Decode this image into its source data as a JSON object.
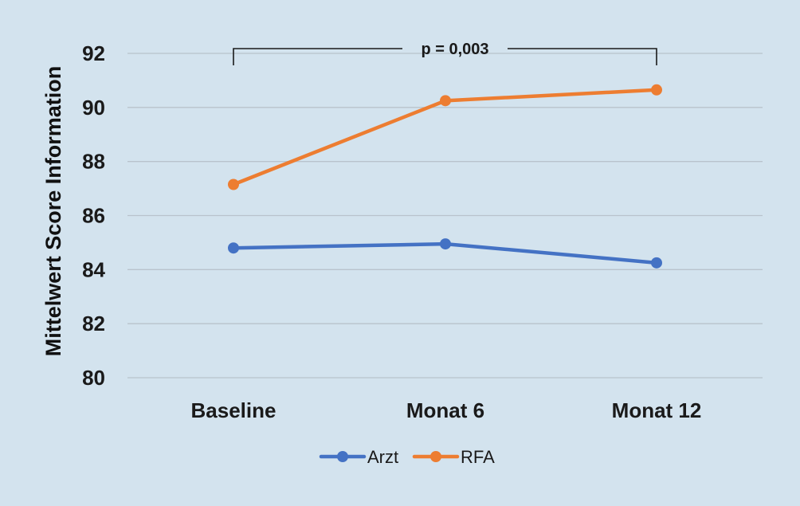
{
  "chart_data": {
    "type": "line",
    "categories": [
      "Baseline",
      "Monat 6",
      "Monat 12"
    ],
    "series": [
      {
        "name": "Arzt",
        "values": [
          84.8,
          84.95,
          84.25
        ],
        "color": "#4472c4"
      },
      {
        "name": "RFA",
        "values": [
          87.15,
          90.25,
          90.65
        ],
        "color": "#ed7d31"
      }
    ],
    "ylabel": "Mittelwert Score Information",
    "xlabel": "",
    "ylim": [
      80,
      92
    ],
    "yticks": [
      "80",
      "82",
      "84",
      "86",
      "88",
      "90",
      "92"
    ],
    "grid": true,
    "legend": "bottom",
    "annotation": {
      "text": "p = 0,003",
      "from": "Baseline",
      "to": "Monat 12"
    }
  }
}
